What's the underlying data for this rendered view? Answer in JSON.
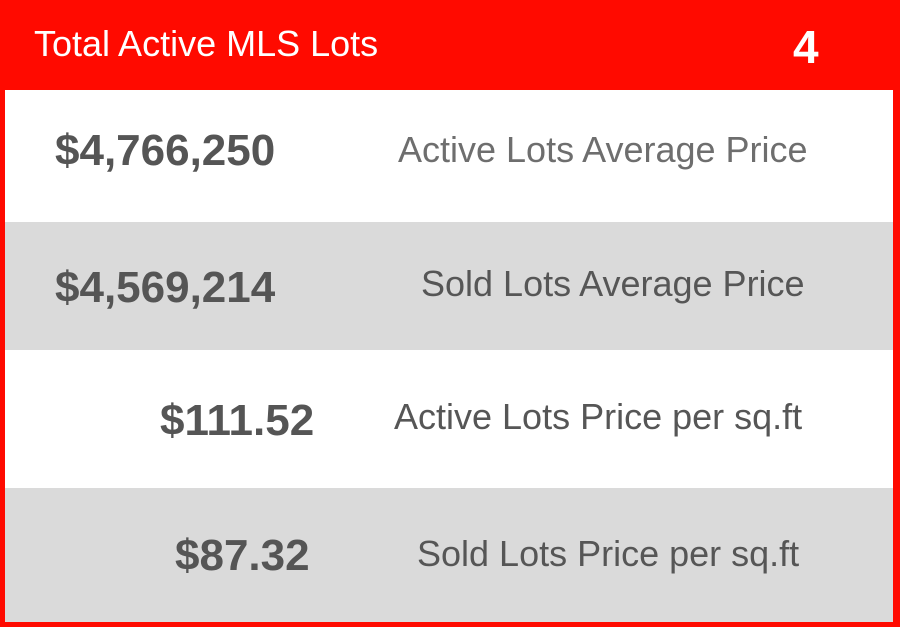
{
  "header": {
    "title": "Total Active MLS Lots",
    "count": "4"
  },
  "stats": [
    {
      "value": "$4,766,250",
      "label": "Active Lots Average Price"
    },
    {
      "value": "$4,569,214",
      "label": "Sold Lots Average Price"
    },
    {
      "value": "$111.52",
      "label": "Active Lots Price per sq.ft"
    },
    {
      "value": "$87.32",
      "label": "Sold Lots Price per sq.ft"
    }
  ],
  "colors": {
    "accent": "#ff0a00",
    "row_white": "#ffffff",
    "row_grey": "#dadada",
    "value_text": "#555555",
    "label_text": "#6e6e6e"
  }
}
